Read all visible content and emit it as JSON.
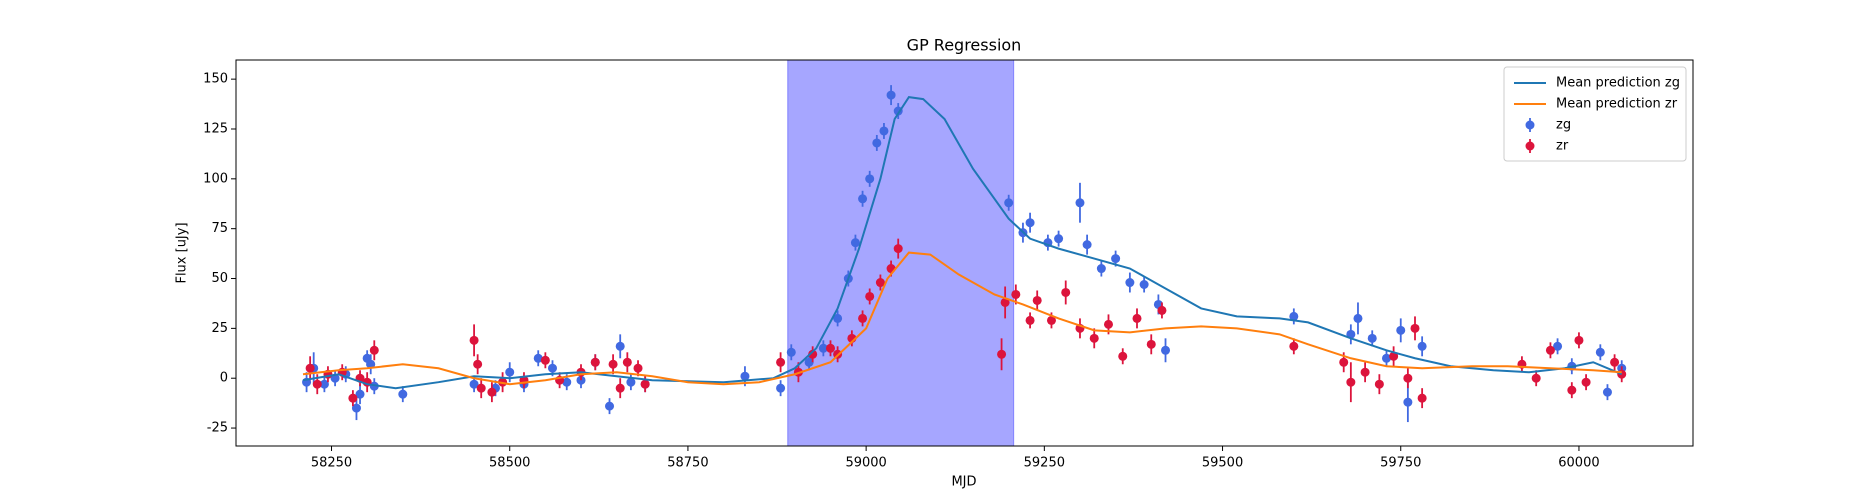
{
  "chart_data": {
    "type": "line",
    "title": "GP Regression",
    "xlabel": "MJD",
    "ylabel": "Flux [uJy]",
    "xlim": [
      58116,
      60160
    ],
    "ylim": [
      -34,
      159.6
    ],
    "xticks": [
      58250,
      58500,
      58750,
      59000,
      59250,
      59500,
      59750,
      60000
    ],
    "yticks": [
      -25,
      0,
      25,
      50,
      75,
      100,
      125,
      150
    ],
    "grid": false,
    "legend": "upper right",
    "span": {
      "xmin": 58890,
      "xmax": 59207,
      "color": "#0000ff"
    },
    "series": [
      {
        "name": "Mean prediction zg",
        "kind": "line",
        "color": "#1f77b4",
        "x": [
          58210,
          58260,
          58300,
          58340,
          58400,
          58450,
          58500,
          58550,
          58600,
          58650,
          58700,
          58800,
          58870,
          58900,
          58930,
          58960,
          58990,
          59020,
          59040,
          59060,
          59080,
          59110,
          59150,
          59200,
          59230,
          59270,
          59320,
          59370,
          59420,
          59470,
          59520,
          59580,
          59620,
          59680,
          59730,
          59770,
          59820,
          59880,
          59930,
          59980,
          60020,
          60060
        ],
        "values": [
          -1,
          2,
          -3,
          -5,
          -2,
          1,
          0,
          2,
          3,
          1,
          -1,
          -2,
          0,
          5,
          15,
          35,
          65,
          100,
          130,
          141,
          140,
          130,
          105,
          80,
          70,
          65,
          60,
          55,
          45,
          35,
          31,
          30,
          28,
          20,
          14,
          10,
          6,
          4,
          3,
          5,
          8,
          2
        ]
      },
      {
        "name": "Mean prediction zr",
        "kind": "line",
        "color": "#ff7f0e",
        "x": [
          58210,
          58260,
          58300,
          58350,
          58400,
          58450,
          58500,
          58550,
          58600,
          58650,
          58700,
          58750,
          58800,
          58850,
          58900,
          58950,
          59000,
          59030,
          59060,
          59090,
          59130,
          59180,
          59220,
          59270,
          59320,
          59370,
          59420,
          59470,
          59520,
          59580,
          59620,
          59680,
          59730,
          59780,
          59850,
          59900,
          59960,
          60020,
          60060
        ],
        "values": [
          2,
          4,
          5,
          7,
          5,
          0,
          -3,
          -1,
          2,
          3,
          1,
          -2,
          -3,
          -2,
          2,
          8,
          25,
          50,
          63,
          62,
          52,
          42,
          37,
          30,
          24,
          23,
          25,
          26,
          25,
          22,
          17,
          10,
          6,
          5,
          6,
          6,
          5,
          4,
          3
        ]
      },
      {
        "name": "zg",
        "kind": "errorbar",
        "color": "#4169e1",
        "x": [
          58215,
          58225,
          58240,
          58255,
          58270,
          58285,
          58290,
          58300,
          58305,
          58310,
          58350,
          58450,
          58480,
          58500,
          58520,
          58540,
          58560,
          58580,
          58600,
          58620,
          58640,
          58655,
          58670,
          58690,
          58830,
          58880,
          58895,
          58920,
          58940,
          58960,
          58975,
          58985,
          58995,
          59005,
          59015,
          59025,
          59035,
          59045,
          59200,
          59220,
          59230,
          59255,
          59270,
          59300,
          59310,
          59330,
          59350,
          59370,
          59390,
          59410,
          59420,
          59600,
          59680,
          59690,
          59710,
          59730,
          59750,
          59760,
          59780,
          59970,
          59990,
          60030,
          60040,
          60060
        ],
        "values": [
          -2,
          5,
          -3,
          0,
          2,
          -15,
          -8,
          10,
          7,
          -4,
          -8,
          -3,
          -5,
          3,
          -3,
          10,
          5,
          -2,
          -1,
          8,
          -14,
          16,
          -2,
          -3,
          1,
          -5,
          13,
          8,
          15,
          30,
          50,
          68,
          90,
          100,
          118,
          124,
          142,
          134,
          88,
          73,
          78,
          68,
          70,
          88,
          67,
          55,
          60,
          48,
          47,
          37,
          14,
          31,
          22,
          30,
          20,
          10,
          24,
          -12,
          16,
          16,
          6,
          13,
          -7,
          5
        ],
        "errors": [
          5,
          8,
          4,
          4,
          4,
          6,
          5,
          4,
          5,
          4,
          4,
          4,
          4,
          5,
          4,
          4,
          4,
          4,
          4,
          4,
          4,
          6,
          4,
          4,
          5,
          4,
          4,
          4,
          4,
          4,
          4,
          4,
          4,
          4,
          4,
          4,
          5,
          4,
          4,
          5,
          5,
          4,
          4,
          10,
          5,
          4,
          4,
          5,
          4,
          5,
          6,
          4,
          5,
          8,
          4,
          4,
          6,
          10,
          5,
          4,
          4,
          4,
          4,
          4
        ]
      },
      {
        "name": "zr",
        "kind": "errorbar",
        "color": "#dc143c",
        "x": [
          58220,
          58230,
          58245,
          58265,
          58280,
          58290,
          58300,
          58310,
          58450,
          58455,
          58460,
          58475,
          58490,
          58520,
          58550,
          58570,
          58600,
          58620,
          58645,
          58655,
          58665,
          58680,
          58690,
          58880,
          58905,
          58925,
          58950,
          58960,
          58980,
          58995,
          59005,
          59020,
          59035,
          59045,
          59190,
          59195,
          59210,
          59230,
          59240,
          59260,
          59280,
          59300,
          59320,
          59340,
          59360,
          59380,
          59400,
          59415,
          59600,
          59670,
          59680,
          59700,
          59720,
          59740,
          59760,
          59770,
          59780,
          59920,
          59940,
          59960,
          59990,
          60000,
          60010,
          60050,
          60060
        ],
        "values": [
          5,
          -3,
          2,
          3,
          -10,
          0,
          -2,
          14,
          19,
          7,
          -5,
          -7,
          -2,
          -1,
          9,
          -1,
          3,
          8,
          7,
          -5,
          8,
          5,
          -3,
          8,
          3,
          12,
          15,
          12,
          20,
          30,
          41,
          48,
          55,
          65,
          12,
          38,
          42,
          29,
          39,
          29,
          43,
          25,
          20,
          27,
          11,
          30,
          17,
          34,
          16,
          8,
          -2,
          3,
          -3,
          11,
          0,
          25,
          -10,
          7,
          0,
          14,
          -6,
          19,
          -2,
          8,
          2
        ],
        "errors": [
          6,
          5,
          4,
          4,
          4,
          4,
          5,
          5,
          8,
          5,
          5,
          5,
          5,
          4,
          4,
          4,
          4,
          4,
          5,
          5,
          5,
          4,
          4,
          5,
          5,
          4,
          4,
          4,
          4,
          4,
          4,
          4,
          4,
          5,
          8,
          8,
          5,
          4,
          5,
          4,
          6,
          5,
          5,
          5,
          4,
          5,
          5,
          4,
          4,
          5,
          10,
          5,
          5,
          5,
          5,
          6,
          5,
          4,
          4,
          4,
          4,
          4,
          4,
          4,
          4
        ]
      }
    ]
  }
}
